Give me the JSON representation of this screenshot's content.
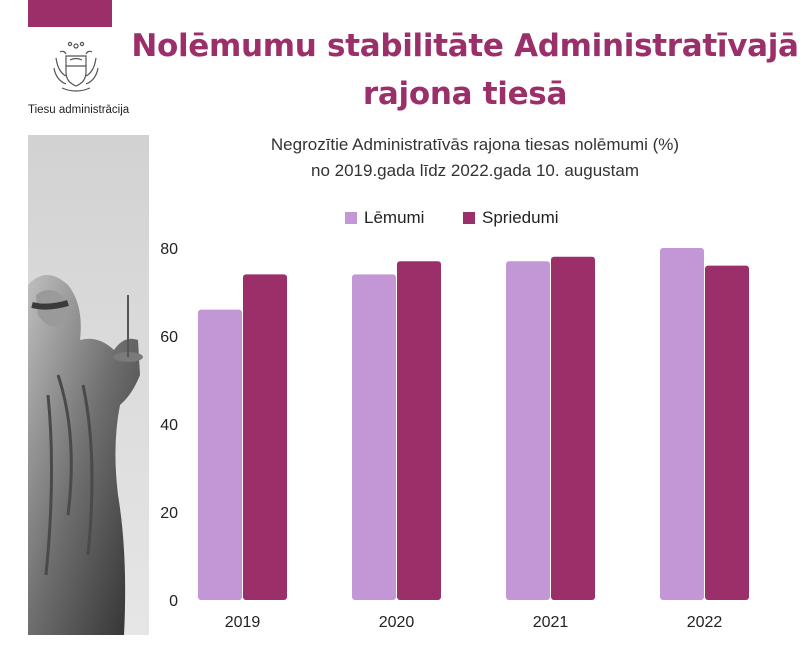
{
  "header": {
    "title_line1": "Nolēmumu stabilitāte Administratīvajā",
    "title_line2": "rajona tiesā",
    "org_name": "Tiesu administrācija",
    "crest_icon": "latvia-coat-of-arms-icon",
    "accent_color": "#9b2f6a"
  },
  "side_image": {
    "icon": "lady-justice-statue-photo"
  },
  "chart_data": {
    "type": "bar",
    "title": "Negrozītie Administratīvās rajona tiesas nolēmumi (%)",
    "subtitle": "no 2019.gada līdz 2022.gada 10. augustam",
    "categories": [
      "2019",
      "2020",
      "2021",
      "2022"
    ],
    "series": [
      {
        "name": "Lēmumi",
        "color": "#c397d6",
        "values": [
          66,
          74,
          77,
          80
        ]
      },
      {
        "name": "Spriedumi",
        "color": "#9b2f6a",
        "values": [
          74,
          77,
          78,
          76
        ]
      }
    ],
    "ylim": [
      0,
      80
    ],
    "yticks": [
      0,
      20,
      40,
      60,
      80
    ],
    "grid": false,
    "legend_position": "top-center"
  }
}
